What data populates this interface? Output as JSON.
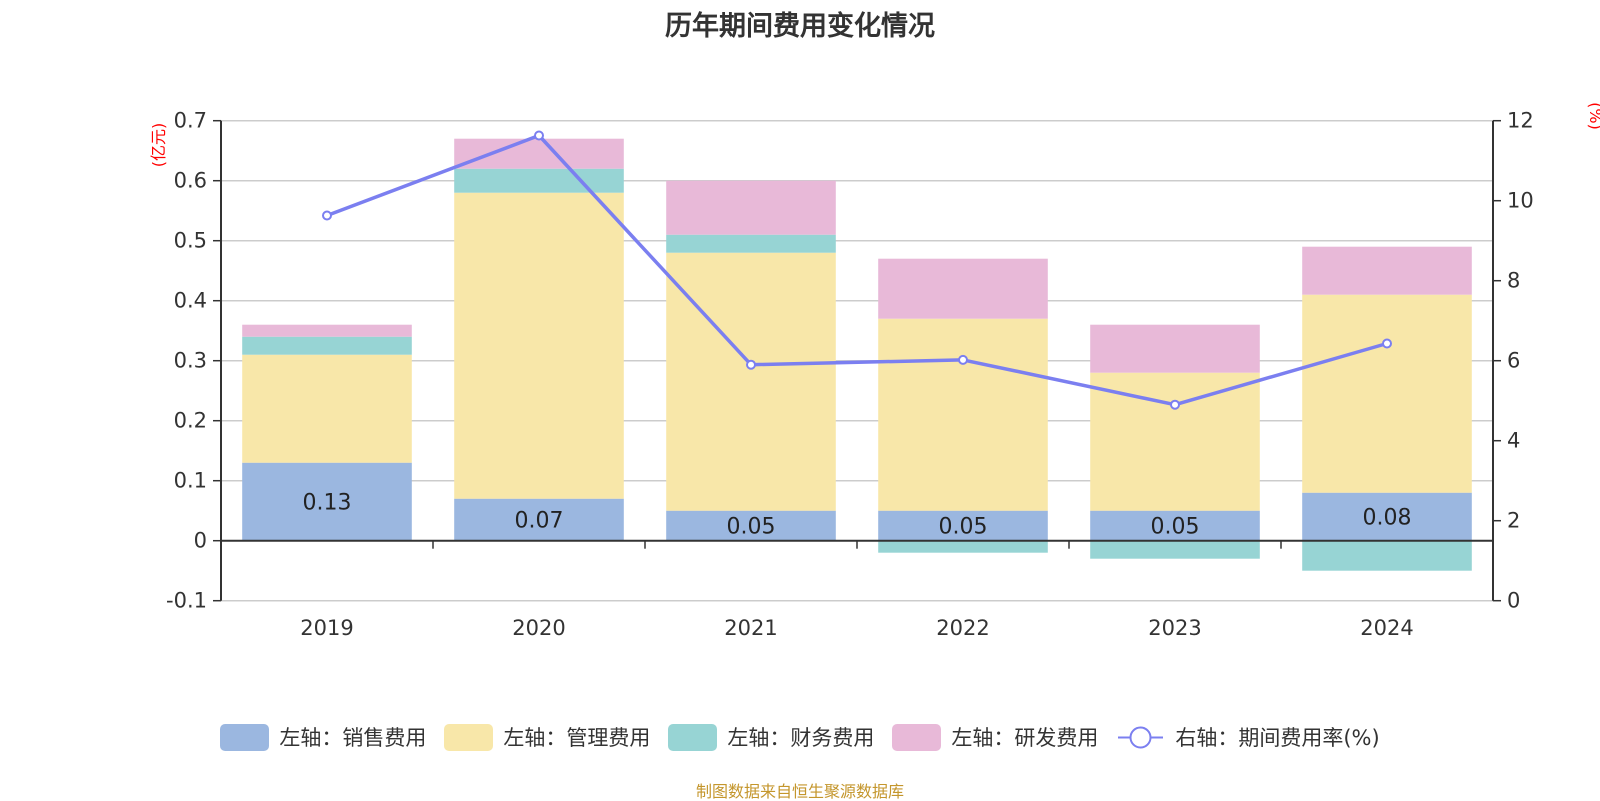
{
  "title": "历年期间费用变化情况",
  "source": "制图数据来自恒生聚源数据库",
  "colors": {
    "sales": "#9bb7e0",
    "admin": "#f8e7a9",
    "finance": "#97d4d4",
    "rnd": "#e8b9d8",
    "rate": "#7b7ff0"
  },
  "legend": [
    {
      "key": "sales",
      "label": "左轴：销售费用",
      "type": "bar"
    },
    {
      "key": "admin",
      "label": "左轴：管理费用",
      "type": "bar"
    },
    {
      "key": "finance",
      "label": "左轴：财务费用",
      "type": "bar"
    },
    {
      "key": "rnd",
      "label": "左轴：研发费用",
      "type": "bar"
    },
    {
      "key": "rate",
      "label": "右轴：期间费用率(%)",
      "type": "line"
    }
  ],
  "chart_data": {
    "type": "bar",
    "stacked": true,
    "title": "历年期间费用变化情况",
    "categories": [
      "2019",
      "2020",
      "2021",
      "2022",
      "2023",
      "2024"
    ],
    "ylabel": "(亿元)",
    "y2label": "(%)",
    "ylim": [
      -0.1,
      0.7
    ],
    "yticks": [
      "-0.1",
      "0",
      "0.1",
      "0.2",
      "0.3",
      "0.4",
      "0.5",
      "0.6",
      "0.7"
    ],
    "y2lim": [
      0,
      12
    ],
    "y2ticks": [
      "0",
      "2",
      "4",
      "6",
      "8",
      "10",
      "12"
    ],
    "grid": true,
    "legend_position": "bottom",
    "series": [
      {
        "key": "sales",
        "name": "左轴：销售费用",
        "axis": "left",
        "type": "bar",
        "values": [
          0.13,
          0.07,
          0.05,
          0.05,
          0.05,
          0.08
        ],
        "labels": [
          "0.13",
          "0.07",
          "0.05",
          "0.05",
          "0.05",
          "0.08"
        ]
      },
      {
        "key": "admin",
        "name": "左轴：管理费用",
        "axis": "left",
        "type": "bar",
        "values": [
          0.18,
          0.51,
          0.43,
          0.32,
          0.23,
          0.33
        ]
      },
      {
        "key": "finance",
        "name": "左轴：财务费用",
        "axis": "left",
        "type": "bar",
        "values": [
          0.03,
          0.04,
          0.03,
          -0.02,
          -0.03,
          -0.05
        ]
      },
      {
        "key": "rnd",
        "name": "左轴：研发费用",
        "axis": "left",
        "type": "bar",
        "values": [
          0.02,
          0.05,
          0.09,
          0.1,
          0.08,
          0.08
        ]
      },
      {
        "key": "rate",
        "name": "右轴：期间费用率(%)",
        "axis": "right",
        "type": "line",
        "values": [
          9.63,
          11.63,
          5.9,
          6.02,
          4.9,
          6.43
        ]
      }
    ]
  }
}
